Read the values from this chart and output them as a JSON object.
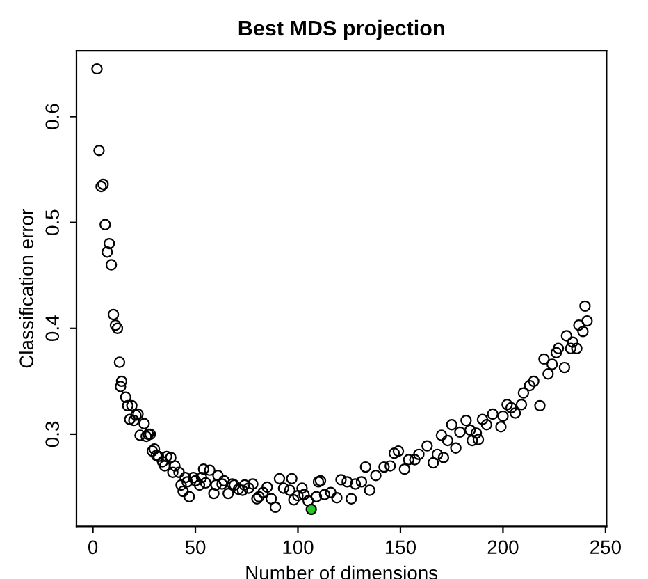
{
  "chart_data": {
    "type": "scatter",
    "title": "Best MDS projection",
    "xlabel": "Number of dimensions",
    "ylabel": "Classification error",
    "xlim": [
      -8,
      250.5
    ],
    "ylim": [
      0.213,
      0.662
    ],
    "xticks": [
      0,
      50,
      100,
      150,
      200,
      250
    ],
    "yticks": [
      0.3,
      0.4,
      0.5,
      0.6
    ],
    "grid": false,
    "legend": false,
    "marker": "circle",
    "series": [
      {
        "color": "#000000",
        "x": [
          2,
          3,
          4,
          5,
          6,
          7,
          8,
          9,
          10,
          11,
          12,
          13,
          13.5,
          14,
          16,
          17,
          18,
          19,
          20,
          21,
          22,
          23,
          25,
          26,
          27,
          28,
          29,
          30,
          31,
          32,
          34,
          35,
          36,
          38,
          39,
          40,
          42,
          43,
          44,
          45,
          46,
          47,
          49,
          50,
          52,
          53,
          54,
          55,
          57,
          59,
          60,
          61,
          63,
          64,
          66,
          68,
          69,
          71,
          73,
          74,
          76,
          78,
          80,
          81,
          83,
          85,
          87,
          89,
          91,
          93,
          96,
          97,
          98,
          100,
          102,
          103,
          105,
          109,
          110,
          111,
          113,
          116,
          119,
          121,
          124,
          126,
          128,
          131,
          133,
          135,
          138,
          142,
          145,
          147,
          149,
          152,
          154,
          157,
          159,
          163,
          166,
          168,
          170,
          171,
          173,
          175,
          177,
          179,
          182,
          184,
          185,
          187,
          188,
          190,
          192,
          195,
          199,
          200,
          202,
          204,
          206,
          209,
          210,
          213,
          215,
          218,
          220,
          222,
          224,
          226,
          227,
          230,
          231,
          233,
          234,
          236,
          237,
          239,
          240,
          241
        ],
        "values": [
          0.645,
          0.568,
          0.534,
          0.536,
          0.498,
          0.472,
          0.48,
          0.46,
          0.413,
          0.403,
          0.4,
          0.368,
          0.345,
          0.35,
          0.335,
          0.327,
          0.314,
          0.327,
          0.313,
          0.318,
          0.319,
          0.299,
          0.31,
          0.298,
          0.3,
          0.3,
          0.284,
          0.286,
          0.28,
          0.279,
          0.274,
          0.27,
          0.279,
          0.278,
          0.264,
          0.27,
          0.264,
          0.252,
          0.246,
          0.259,
          0.255,
          0.241,
          0.259,
          0.256,
          0.252,
          0.259,
          0.267,
          0.254,
          0.266,
          0.244,
          0.252,
          0.261,
          0.253,
          0.256,
          0.244,
          0.253,
          0.252,
          0.248,
          0.247,
          0.252,
          0.249,
          0.253,
          0.239,
          0.241,
          0.245,
          0.25,
          0.239,
          0.231,
          0.258,
          0.249,
          0.247,
          0.258,
          0.238,
          0.242,
          0.249,
          0.243,
          0.237,
          0.241,
          0.255,
          0.256,
          0.243,
          0.245,
          0.24,
          0.257,
          0.255,
          0.239,
          0.253,
          0.255,
          0.269,
          0.247,
          0.261,
          0.269,
          0.27,
          0.282,
          0.284,
          0.267,
          0.276,
          0.276,
          0.281,
          0.289,
          0.273,
          0.281,
          0.299,
          0.278,
          0.294,
          0.309,
          0.287,
          0.302,
          0.313,
          0.304,
          0.294,
          0.301,
          0.295,
          0.314,
          0.309,
          0.319,
          0.307,
          0.317,
          0.328,
          0.325,
          0.32,
          0.328,
          0.339,
          0.346,
          0.35,
          0.327,
          0.371,
          0.357,
          0.366,
          0.377,
          0.381,
          0.363,
          0.393,
          0.381,
          0.387,
          0.381,
          0.403,
          0.397,
          0.421,
          0.407
        ]
      },
      {
        "color": "#22cc22",
        "x": [
          106.5
        ],
        "values": [
          0.229
        ]
      }
    ]
  }
}
